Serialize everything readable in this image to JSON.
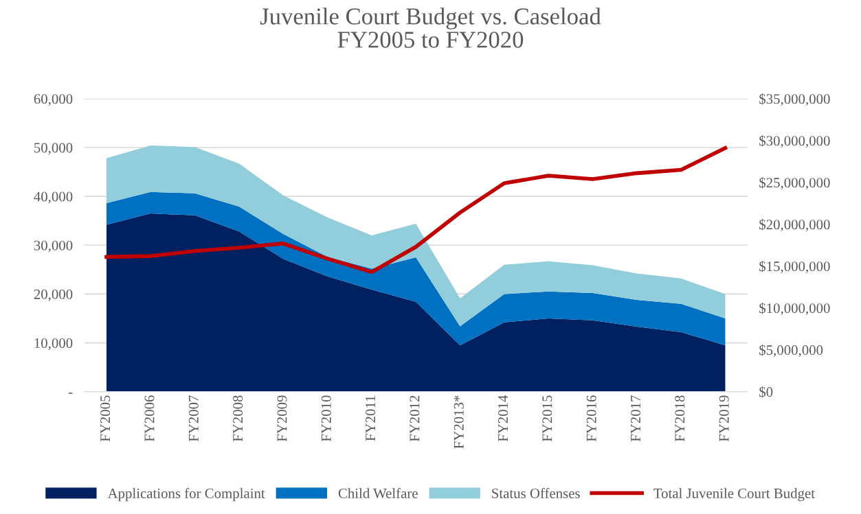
{
  "chart_data": {
    "type": "area",
    "title": "Juvenile Court Budget vs. Caseload\nFY2005 to FY2020",
    "stacked": true,
    "categories": [
      "FY2005",
      "FY2006",
      "FY2007",
      "FY2008",
      "FY2009",
      "FY2010",
      "FY2011",
      "FY2012",
      "FY2013*",
      "FY2014",
      "FY2015",
      "FY2016",
      "FY2017",
      "FY2018",
      "FY2019"
    ],
    "series": [
      {
        "name": "Applications for Complaint",
        "color": "#002060",
        "values": [
          34200,
          36500,
          36100,
          32800,
          27200,
          23600,
          20900,
          18400,
          9500,
          14200,
          15000,
          14600,
          13300,
          12200,
          9500
        ]
      },
      {
        "name": "Child Welfare",
        "color": "#0070c0",
        "values": [
          4400,
          4400,
          4500,
          5100,
          5100,
          4000,
          4300,
          9100,
          3900,
          5800,
          5500,
          5600,
          5500,
          5800,
          5500
        ]
      },
      {
        "name": "Status Offenses",
        "color": "#92cddc",
        "values": [
          9200,
          9500,
          9500,
          8800,
          7900,
          8100,
          6800,
          6900,
          5700,
          6000,
          6200,
          5700,
          5400,
          5200,
          5000
        ]
      },
      {
        "name": "Total Juvenile Court Budget",
        "color": "#c00000",
        "type": "line",
        "axis": "y2",
        "values": [
          16100000,
          16200000,
          16800000,
          17200000,
          17700000,
          15900000,
          14300000,
          17300000,
          21400000,
          24900000,
          25800000,
          25400000,
          26100000,
          26500000,
          29100000
        ]
      }
    ],
    "ylim": [
      0,
      60000
    ],
    "yticks": [
      {
        "value": 0,
        "label": "-"
      },
      {
        "value": 10000,
        "label": "10,000"
      },
      {
        "value": 20000,
        "label": "20,000"
      },
      {
        "value": 30000,
        "label": "30,000"
      },
      {
        "value": 40000,
        "label": "40,000"
      },
      {
        "value": 50000,
        "label": "50,000"
      },
      {
        "value": 60000,
        "label": "60,000"
      }
    ],
    "y2lim": [
      0,
      35000000
    ],
    "y2ticks": [
      {
        "value": 0,
        "label": "$0"
      },
      {
        "value": 5000000,
        "label": "$5,000,000"
      },
      {
        "value": 10000000,
        "label": "$10,000,000"
      },
      {
        "value": 15000000,
        "label": "$15,000,000"
      },
      {
        "value": 20000000,
        "label": "$20,000,000"
      },
      {
        "value": 25000000,
        "label": "$25,000,000"
      },
      {
        "value": 30000000,
        "label": "$30,000,000"
      },
      {
        "value": 35000000,
        "label": "$35,000,000"
      }
    ],
    "grid": "y",
    "legend": "bottom"
  }
}
